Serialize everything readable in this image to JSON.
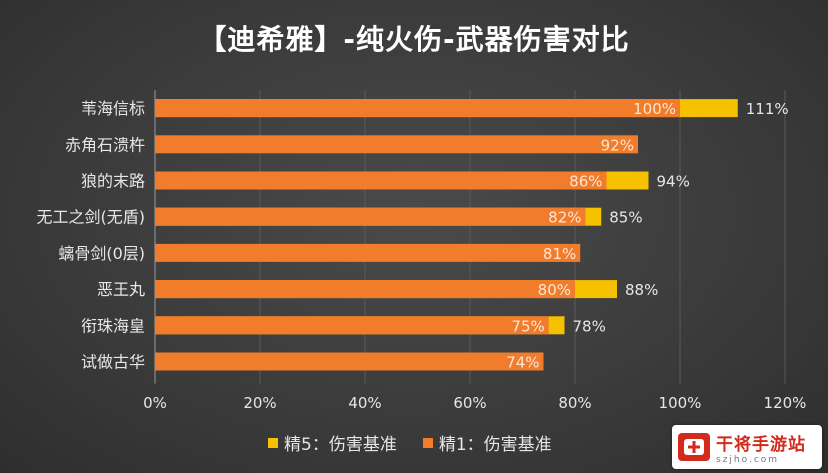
{
  "title": "【迪希雅】-纯火伤-武器伤害对比",
  "colors": {
    "r1": "#f07c2c",
    "r5": "#f6c200",
    "axis": "#9a9a9a",
    "text": "#e6e6e6"
  },
  "legend": {
    "r5_label": "精5：伤害基准",
    "r1_label": "精1：伤害基准"
  },
  "watermark": {
    "name": "干将手游站",
    "url": "szjho.com"
  },
  "chart_data": {
    "type": "bar",
    "orientation": "horizontal",
    "stacked_overlay": true,
    "categories": [
      "苇海信标",
      "赤角石溃杵",
      "狼的末路",
      "无工之剑(无盾)",
      "螭骨剑(0层)",
      "恶王丸",
      "衔珠海皇",
      "试做古华"
    ],
    "series": [
      {
        "name": "精1：伤害基准",
        "values": [
          100,
          92,
          86,
          82,
          81,
          80,
          75,
          74
        ],
        "labels": [
          "100%",
          "92%",
          "86%",
          "82%",
          "81%",
          "80%",
          "75%",
          "74%"
        ]
      },
      {
        "name": "精5：伤害基准",
        "values": [
          111,
          92,
          94,
          85,
          81,
          88,
          78,
          74
        ],
        "labels": [
          "111%",
          "",
          "94%",
          "85%",
          "",
          "88%",
          "78%",
          ""
        ]
      }
    ],
    "xlim": [
      0,
      120
    ],
    "xticks": [
      "0%",
      "20%",
      "40%",
      "60%",
      "80%",
      "100%",
      "120%"
    ],
    "xtick_values": [
      0,
      20,
      40,
      60,
      80,
      100,
      120
    ],
    "grid": "vertical",
    "legend_position": "bottom"
  }
}
